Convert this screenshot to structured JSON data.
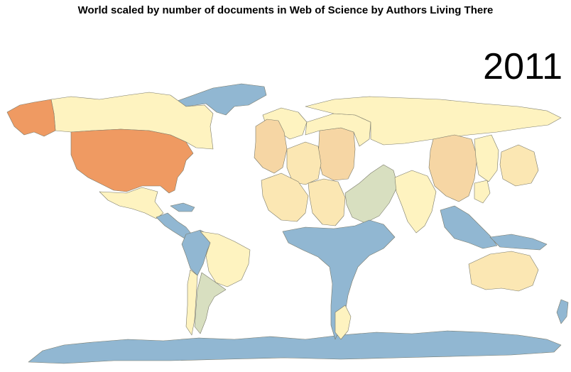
{
  "title": "World scaled by number of documents in Web of Science by Authors Living There",
  "year_label": "2011",
  "colors": {
    "highest": "#ef9a62",
    "high": "#f6d6a4",
    "medium": "#fbe7b3",
    "low": "#fef3c0",
    "lower": "#d8dfc0",
    "lowest": "#91b7d2",
    "ocean": "#ffffff"
  },
  "regions": [
    {
      "name": "United States",
      "level": "highest"
    },
    {
      "name": "Alaska",
      "level": "highest"
    },
    {
      "name": "Canada",
      "level": "low"
    },
    {
      "name": "Greenland",
      "level": "lowest"
    },
    {
      "name": "Mexico",
      "level": "low"
    },
    {
      "name": "Central America and Caribbean",
      "level": "lowest"
    },
    {
      "name": "Brazil",
      "level": "low"
    },
    {
      "name": "Argentina",
      "level": "lower"
    },
    {
      "name": "Chile",
      "level": "low"
    },
    {
      "name": "Andean countries",
      "level": "lowest"
    },
    {
      "name": "United Kingdom",
      "level": "high"
    },
    {
      "name": "Germany",
      "level": "high"
    },
    {
      "name": "France",
      "level": "medium"
    },
    {
      "name": "Spain",
      "level": "medium"
    },
    {
      "name": "Italy",
      "level": "medium"
    },
    {
      "name": "Scandinavia",
      "level": "low"
    },
    {
      "name": "Eastern Europe",
      "level": "low"
    },
    {
      "name": "Russia",
      "level": "low"
    },
    {
      "name": "Middle East",
      "level": "lower"
    },
    {
      "name": "Africa",
      "level": "lowest"
    },
    {
      "name": "South Africa",
      "level": "low"
    },
    {
      "name": "India",
      "level": "low"
    },
    {
      "name": "China",
      "level": "high"
    },
    {
      "name": "Japan",
      "level": "medium"
    },
    {
      "name": "South Korea",
      "level": "low"
    },
    {
      "name": "Taiwan",
      "level": "low"
    },
    {
      "name": "Southeast Asia",
      "level": "lowest"
    },
    {
      "name": "Australia",
      "level": "medium"
    },
    {
      "name": "New Zealand",
      "level": "lowest"
    },
    {
      "name": "Antarctica",
      "level": "lowest"
    }
  ]
}
